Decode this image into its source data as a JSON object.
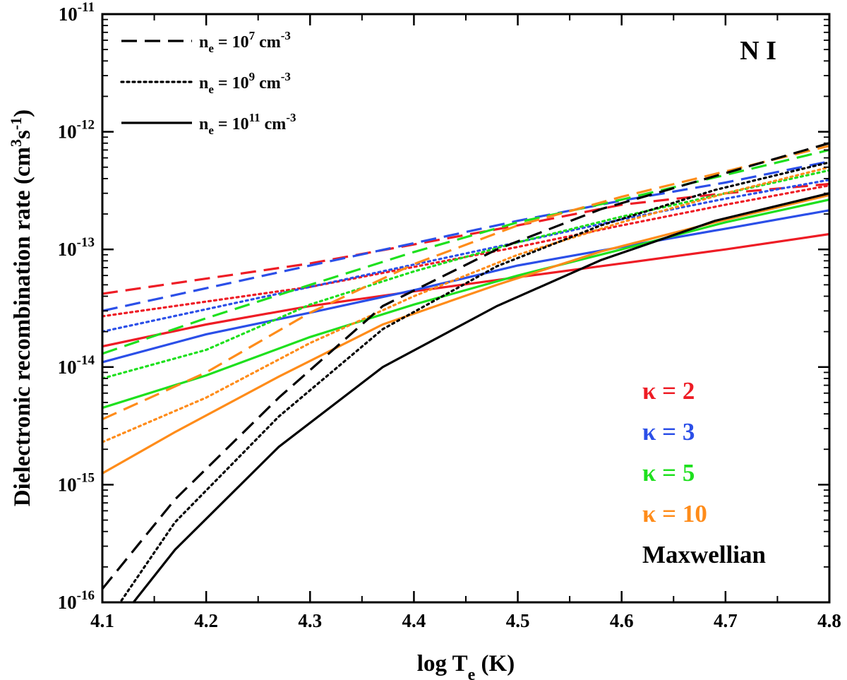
{
  "chart_data": {
    "type": "line",
    "title": "",
    "xlabel": "log T_e (K)",
    "ylabel": "Dielectronic recombination rate (cm^3 s^-1)",
    "xlim": [
      4.1,
      4.8
    ],
    "ylim": [
      1e-16,
      1e-11
    ],
    "yscale": "log",
    "grid": false,
    "x_ticks": [
      "4.1",
      "4.2",
      "4.3",
      "4.4",
      "4.5",
      "4.6",
      "4.7",
      "4.8"
    ],
    "y_ticks": [
      {
        "base": "10",
        "exp": "-16"
      },
      {
        "base": "10",
        "exp": "-15"
      },
      {
        "base": "10",
        "exp": "-14"
      },
      {
        "base": "10",
        "exp": "-13"
      },
      {
        "base": "10",
        "exp": "-12"
      },
      {
        "base": "10",
        "exp": "-11"
      }
    ],
    "annotation": "N I",
    "style_legend": [
      {
        "dash": "dashed",
        "prefix": "n",
        "sub": "e",
        "mid": " = 10",
        "exp": "7",
        "unit": " cm",
        "unit_exp": "-3"
      },
      {
        "dash": "dotted",
        "prefix": "n",
        "sub": "e",
        "mid": " = 10",
        "exp": "9",
        "unit": " cm",
        "unit_exp": "-3"
      },
      {
        "dash": "solid",
        "prefix": "n",
        "sub": "e",
        "mid": " = 10",
        "exp": "11",
        "unit": " cm",
        "unit_exp": "-3"
      }
    ],
    "color_legend": [
      {
        "label": "κ = 2",
        "color": "#ee1c25"
      },
      {
        "label": "κ = 3",
        "color": "#2b4fe8"
      },
      {
        "label": "κ = 5",
        "color": "#1ee01e"
      },
      {
        "label": "κ = 10",
        "color": "#ff8c1a"
      },
      {
        "label": "Maxwellian",
        "color": "#000000"
      }
    ],
    "series": [
      {
        "kappa": "2",
        "density": "1e7",
        "dash": "dashed",
        "color": "#ee1c25",
        "points": [
          [
            4.1,
            4.2e-14
          ],
          [
            4.3,
            7.6e-14
          ],
          [
            4.5,
            1.6e-13
          ],
          [
            4.6,
            2.4e-13
          ],
          [
            4.7,
            3e-13
          ],
          [
            4.8,
            3.6e-13
          ]
        ]
      },
      {
        "kappa": "2",
        "density": "1e9",
        "dash": "dotted",
        "color": "#ee1c25",
        "points": [
          [
            4.1,
            2.7e-14
          ],
          [
            4.3,
            4.8e-14
          ],
          [
            4.5,
            1.05e-13
          ],
          [
            4.6,
            1.6e-13
          ],
          [
            4.7,
            2.4e-13
          ],
          [
            4.8,
            3.5e-13
          ]
        ]
      },
      {
        "kappa": "2",
        "density": "1e11",
        "dash": "solid",
        "color": "#ee1c25",
        "points": [
          [
            4.1,
            1.5e-14
          ],
          [
            4.2,
            2.3e-14
          ],
          [
            4.3,
            3.3e-14
          ],
          [
            4.4,
            4.4e-14
          ],
          [
            4.5,
            5.8e-14
          ],
          [
            4.6,
            7.6e-14
          ],
          [
            4.7,
            1e-13
          ],
          [
            4.8,
            1.35e-13
          ]
        ]
      },
      {
        "kappa": "3",
        "density": "1e7",
        "dash": "dashed",
        "color": "#2b4fe8",
        "points": [
          [
            4.1,
            3e-14
          ],
          [
            4.3,
            7.3e-14
          ],
          [
            4.5,
            1.75e-13
          ],
          [
            4.6,
            2.6e-13
          ],
          [
            4.7,
            3.7e-13
          ],
          [
            4.8,
            5.6e-13
          ]
        ]
      },
      {
        "kappa": "3",
        "density": "1e9",
        "dash": "dotted",
        "color": "#2b4fe8",
        "points": [
          [
            4.1,
            2e-14
          ],
          [
            4.3,
            4.8e-14
          ],
          [
            4.5,
            1.15e-13
          ],
          [
            4.6,
            1.8e-13
          ],
          [
            4.7,
            2.7e-13
          ],
          [
            4.8,
            3.9e-13
          ]
        ]
      },
      {
        "kappa": "3",
        "density": "1e11",
        "dash": "solid",
        "color": "#2b4fe8",
        "points": [
          [
            4.1,
            1.1e-14
          ],
          [
            4.2,
            1.9e-14
          ],
          [
            4.3,
            2.9e-14
          ],
          [
            4.4,
            4.5e-14
          ],
          [
            4.5,
            7.3e-14
          ],
          [
            4.6,
            1.05e-13
          ],
          [
            4.7,
            1.5e-13
          ],
          [
            4.8,
            2.15e-13
          ]
        ]
      },
      {
        "kappa": "5",
        "density": "1e7",
        "dash": "dashed",
        "color": "#1ee01e",
        "points": [
          [
            4.1,
            1.3e-14
          ],
          [
            4.2,
            2.6e-14
          ],
          [
            4.3,
            5e-14
          ],
          [
            4.4,
            9.5e-14
          ],
          [
            4.5,
            1.7e-13
          ],
          [
            4.6,
            2.65e-13
          ],
          [
            4.7,
            4.3e-13
          ],
          [
            4.8,
            7e-13
          ]
        ]
      },
      {
        "kappa": "5",
        "density": "1e9",
        "dash": "dotted",
        "color": "#1ee01e",
        "points": [
          [
            4.1,
            8e-15
          ],
          [
            4.2,
            1.4e-14
          ],
          [
            4.3,
            3.4e-14
          ],
          [
            4.4,
            6.5e-14
          ],
          [
            4.5,
            1.15e-13
          ],
          [
            4.6,
            1.9e-13
          ],
          [
            4.7,
            3e-13
          ],
          [
            4.8,
            4.7e-13
          ]
        ]
      },
      {
        "kappa": "5",
        "density": "1e11",
        "dash": "solid",
        "color": "#1ee01e",
        "points": [
          [
            4.1,
            4.5e-15
          ],
          [
            4.2,
            8.5e-15
          ],
          [
            4.3,
            1.8e-14
          ],
          [
            4.4,
            3.4e-14
          ],
          [
            4.5,
            6e-14
          ],
          [
            4.6,
            1e-13
          ],
          [
            4.7,
            1.7e-13
          ],
          [
            4.8,
            2.65e-13
          ]
        ]
      },
      {
        "kappa": "10",
        "density": "1e7",
        "dash": "dashed",
        "color": "#ff8c1a",
        "points": [
          [
            4.1,
            3.6e-15
          ],
          [
            4.2,
            9e-15
          ],
          [
            4.3,
            2.9e-14
          ],
          [
            4.4,
            7.5e-14
          ],
          [
            4.5,
            1.6e-13
          ],
          [
            4.6,
            2.8e-13
          ],
          [
            4.7,
            4.6e-13
          ],
          [
            4.8,
            7.6e-13
          ]
        ]
      },
      {
        "kappa": "10",
        "density": "1e9",
        "dash": "dotted",
        "color": "#ff8c1a",
        "points": [
          [
            4.1,
            2.3e-15
          ],
          [
            4.2,
            5.5e-15
          ],
          [
            4.3,
            1.6e-14
          ],
          [
            4.4,
            4e-14
          ],
          [
            4.5,
            9e-14
          ],
          [
            4.6,
            1.7e-13
          ],
          [
            4.7,
            3e-13
          ],
          [
            4.8,
            5e-13
          ]
        ]
      },
      {
        "kappa": "10",
        "density": "1e11",
        "dash": "solid",
        "color": "#ff8c1a",
        "points": [
          [
            4.1,
            1.25e-15
          ],
          [
            4.17,
            2.8e-15
          ],
          [
            4.27,
            8.3e-15
          ],
          [
            4.37,
            2.3e-14
          ],
          [
            4.48,
            5e-14
          ],
          [
            4.58,
            9.6e-14
          ],
          [
            4.69,
            1.7e-13
          ],
          [
            4.8,
            2.9e-13
          ]
        ]
      },
      {
        "kappa": "Maxwellian",
        "density": "1e7",
        "dash": "dashed",
        "color": "#000000",
        "points": [
          [
            4.1,
            1.3e-16
          ],
          [
            4.17,
            7.5e-16
          ],
          [
            4.27,
            5.5e-15
          ],
          [
            4.37,
            3.3e-14
          ],
          [
            4.48,
            1e-13
          ],
          [
            4.58,
            2.2e-13
          ],
          [
            4.69,
            4.2e-13
          ],
          [
            4.8,
            8e-13
          ]
        ]
      },
      {
        "kappa": "Maxwellian",
        "density": "1e9",
        "dash": "dotted",
        "color": "#000000",
        "points": [
          [
            4.1,
            6e-17
          ],
          [
            4.17,
            4.8e-16
          ],
          [
            4.27,
            3.8e-15
          ],
          [
            4.37,
            2.1e-14
          ],
          [
            4.48,
            7.2e-14
          ],
          [
            4.58,
            1.6e-13
          ],
          [
            4.69,
            3.2e-13
          ],
          [
            4.8,
            5.5e-13
          ]
        ]
      },
      {
        "kappa": "Maxwellian",
        "density": "1e11",
        "dash": "solid",
        "color": "#000000",
        "points": [
          [
            4.13,
            1e-16
          ],
          [
            4.17,
            2.8e-16
          ],
          [
            4.27,
            2.1e-15
          ],
          [
            4.37,
            1e-14
          ],
          [
            4.48,
            3.3e-14
          ],
          [
            4.58,
            8.1e-14
          ],
          [
            4.69,
            1.75e-13
          ],
          [
            4.8,
            3e-13
          ]
        ]
      }
    ]
  }
}
